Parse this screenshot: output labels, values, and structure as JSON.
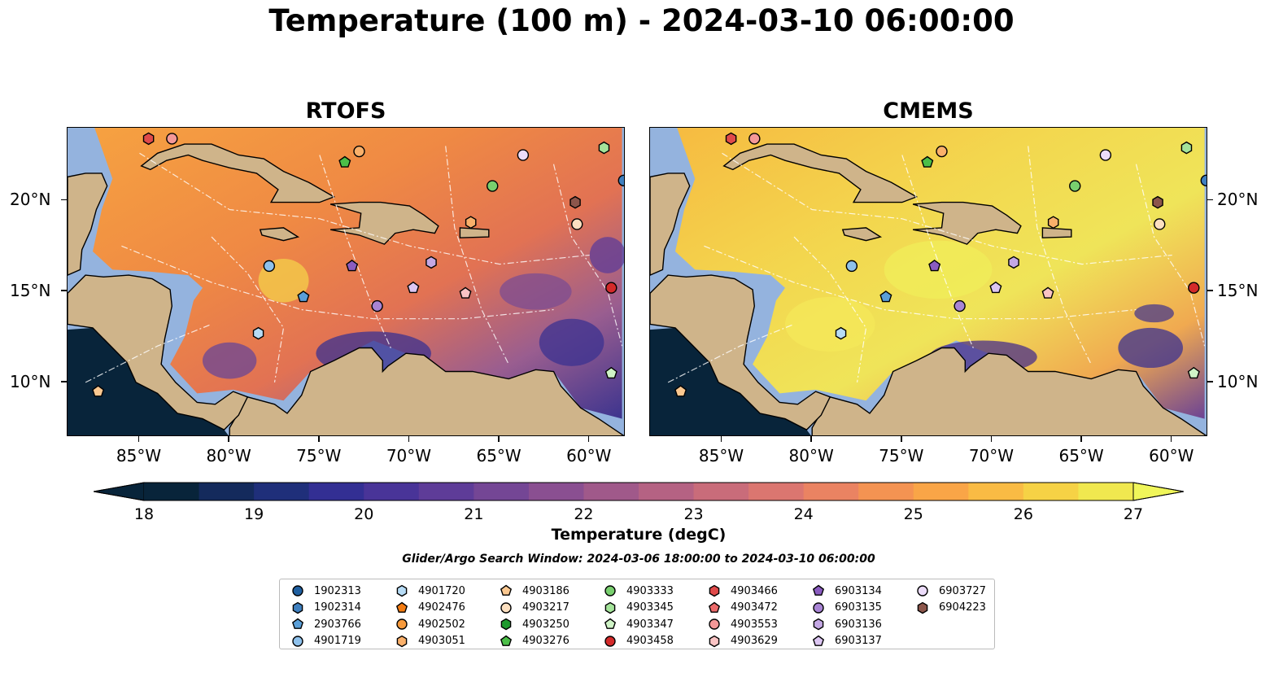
{
  "title": "Temperature (100 m) - 2024-03-10 06:00:00",
  "panels": [
    {
      "title": "RTOFS",
      "palette": "warm"
    },
    {
      "title": "CMEMS",
      "palette": "hot"
    }
  ],
  "x_ticks": [
    "85°W",
    "80°W",
    "75°W",
    "70°W",
    "65°W",
    "60°W"
  ],
  "y_ticks": [
    "20°N",
    "15°N",
    "10°N"
  ],
  "colorbar": {
    "ticks": [
      "18",
      "19",
      "20",
      "21",
      "22",
      "23",
      "24",
      "25",
      "26",
      "27"
    ],
    "label": "Temperature (degC)",
    "colors": [
      "#08243a",
      "#142a5c",
      "#1f2f7a",
      "#332f93",
      "#493498",
      "#5e3c98",
      "#744695",
      "#8a4f91",
      "#a0598a",
      "#b56283",
      "#c96c7a",
      "#db7670",
      "#ea8362",
      "#f49352",
      "#f9a547",
      "#f9bb44",
      "#f6d245",
      "#f0e84f"
    ]
  },
  "search_window": "Glider/Argo Search Window: 2024-03-06 18:00:00 to 2024-03-10 06:00:00",
  "map_style": {
    "land": "#cfb48a",
    "shelf": "#94b3de",
    "pacific": "#08243a"
  },
  "legend": [
    {
      "id": "1902313",
      "shape": "circle",
      "color": "#1f5fa0"
    },
    {
      "id": "1902314",
      "shape": "hexagon",
      "color": "#3f80c0"
    },
    {
      "id": "2903766",
      "shape": "pentagon",
      "color": "#5a9fd8"
    },
    {
      "id": "4901719",
      "shape": "circle",
      "color": "#8ec1ec"
    },
    {
      "id": "4901720",
      "shape": "hexagon",
      "color": "#b7dcf6"
    },
    {
      "id": "4902476",
      "shape": "pentagon",
      "color": "#f47c12"
    },
    {
      "id": "4902502",
      "shape": "circle",
      "color": "#f79a3c"
    },
    {
      "id": "4903051",
      "shape": "hexagon",
      "color": "#fab06a"
    },
    {
      "id": "4903186",
      "shape": "pentagon",
      "color": "#fbc890"
    },
    {
      "id": "4903217",
      "shape": "circle",
      "color": "#fde0c0"
    },
    {
      "id": "4903250",
      "shape": "hexagon",
      "color": "#1e9a2e"
    },
    {
      "id": "4903276",
      "shape": "pentagon",
      "color": "#4cbf48"
    },
    {
      "id": "4903333",
      "shape": "circle",
      "color": "#78cf6e"
    },
    {
      "id": "4903345",
      "shape": "hexagon",
      "color": "#a4e49a"
    },
    {
      "id": "4903347",
      "shape": "pentagon",
      "color": "#cff3c6"
    },
    {
      "id": "4903458",
      "shape": "circle",
      "color": "#d42a2a"
    },
    {
      "id": "4903466",
      "shape": "hexagon",
      "color": "#e04a4a"
    },
    {
      "id": "4903472",
      "shape": "pentagon",
      "color": "#ec6a6a"
    },
    {
      "id": "4903553",
      "shape": "circle",
      "color": "#f49898"
    },
    {
      "id": "4903629",
      "shape": "hexagon",
      "color": "#fac4c4"
    },
    {
      "id": "6903134",
      "shape": "pentagon",
      "color": "#8a5cc0"
    },
    {
      "id": "6903135",
      "shape": "circle",
      "color": "#a884d4"
    },
    {
      "id": "6903136",
      "shape": "hexagon",
      "color": "#c4a8e4"
    },
    {
      "id": "6903137",
      "shape": "pentagon",
      "color": "#dcc6f2"
    },
    {
      "id": "6903727",
      "shape": "circle",
      "color": "#ecdcfa"
    },
    {
      "id": "6904223",
      "shape": "hexagon",
      "color": "#8c564b"
    }
  ]
}
